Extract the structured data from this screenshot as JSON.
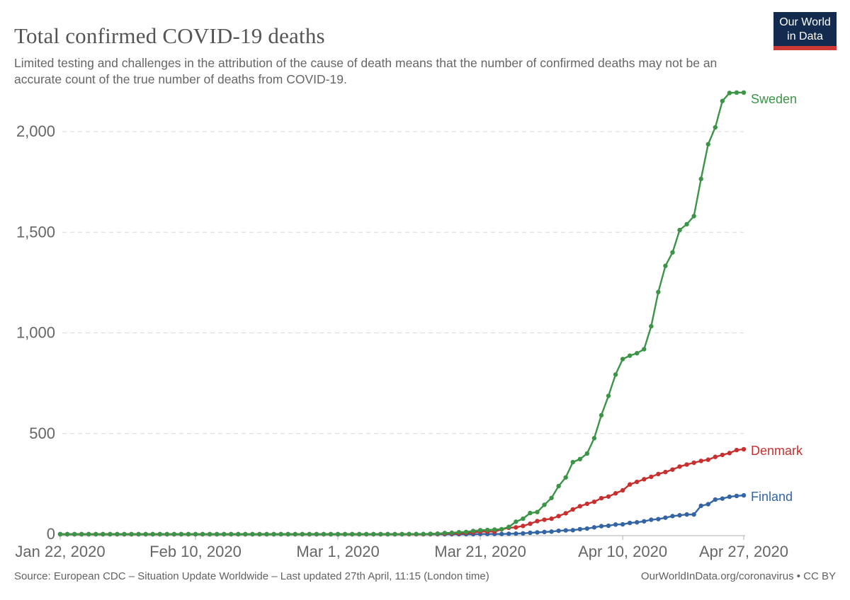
{
  "header": {
    "title": "Total confirmed COVID-19 deaths",
    "subtitle": "Limited testing and challenges in the attribution of the cause of death means that the number of confirmed deaths may not be an accurate count of the true number of deaths from COVID-19."
  },
  "logo": {
    "line1": "Our World",
    "line2": "in Data",
    "bg_color": "#122B4E",
    "stripe_color": "#CF3A34"
  },
  "footer": {
    "source": "Source: European CDC – Situation Update Worldwide – Last updated 27th April, 11:15 (London time)",
    "link": "OurWorldInData.org/coronavirus • CC BY"
  },
  "chart_data": {
    "type": "line",
    "title": "Total confirmed COVID-19 deaths",
    "xlabel": "",
    "ylabel": "",
    "grid": "horizontal-dashed",
    "legend_position": "end-of-line-labels",
    "start_date": "Jan 22, 2020",
    "end_date": "Apr 27, 2020",
    "num_days": 97,
    "x_ticks": [
      {
        "label": "Jan 22, 2020",
        "day_index": 0
      },
      {
        "label": "Feb 10, 2020",
        "day_index": 19
      },
      {
        "label": "Mar 1, 2020",
        "day_index": 39
      },
      {
        "label": "Mar 21, 2020",
        "day_index": 59
      },
      {
        "label": "Apr 10, 2020",
        "day_index": 79
      },
      {
        "label": "Apr 27, 2020",
        "day_index": 96
      }
    ],
    "y_ticks": [
      {
        "label": "0",
        "value": 0
      },
      {
        "label": "500",
        "value": 500
      },
      {
        "label": "1,000",
        "value": 1000
      },
      {
        "label": "1,500",
        "value": 1500
      },
      {
        "label": "2,000",
        "value": 2000
      }
    ],
    "ylim": [
      0,
      2250
    ],
    "colors": {
      "grid": "#d9d9d9",
      "axis": "#b0b0b0",
      "tick_text": "#666666"
    },
    "series": [
      {
        "name": "Sweden",
        "color": "#3C9447",
        "final_value": 2194,
        "values": [
          0,
          0,
          0,
          0,
          0,
          0,
          0,
          0,
          0,
          0,
          0,
          0,
          0,
          0,
          0,
          0,
          0,
          0,
          0,
          0,
          0,
          0,
          0,
          0,
          0,
          0,
          0,
          0,
          0,
          0,
          0,
          0,
          0,
          0,
          0,
          0,
          0,
          0,
          0,
          0,
          0,
          0,
          0,
          0,
          0,
          0,
          0,
          0,
          0,
          1,
          1,
          1,
          2,
          3,
          6,
          7,
          10,
          11,
          16,
          20,
          21,
          23,
          25,
          36,
          62,
          77,
          105,
          110,
          146,
          180,
          239,
          282,
          358,
          373,
          401,
          477,
          591,
          687,
          793,
          870,
          887,
          899,
          919,
          1033,
          1203,
          1333,
          1400,
          1511,
          1540,
          1580,
          1765,
          1937,
          2021,
          2152,
          2192,
          2194,
          2194
        ]
      },
      {
        "name": "Denmark",
        "color": "#C7302E",
        "final_value": 422,
        "values": [
          0,
          0,
          0,
          0,
          0,
          0,
          0,
          0,
          0,
          0,
          0,
          0,
          0,
          0,
          0,
          0,
          0,
          0,
          0,
          0,
          0,
          0,
          0,
          0,
          0,
          0,
          0,
          0,
          0,
          0,
          0,
          0,
          0,
          0,
          0,
          0,
          0,
          0,
          0,
          0,
          0,
          0,
          0,
          0,
          0,
          0,
          0,
          0,
          0,
          0,
          0,
          0,
          1,
          2,
          3,
          4,
          4,
          6,
          9,
          13,
          13,
          13,
          24,
          32,
          34,
          41,
          52,
          65,
          72,
          77,
          90,
          104,
          123,
          139,
          151,
          161,
          179,
          187,
          203,
          218,
          247,
          260,
          273,
          285,
          299,
          309,
          321,
          336,
          346,
          355,
          364,
          370,
          384,
          394,
          403,
          418,
          422
        ]
      },
      {
        "name": "Finland",
        "color": "#3365A5",
        "final_value": 193,
        "values": [
          0,
          0,
          0,
          0,
          0,
          0,
          0,
          0,
          0,
          0,
          0,
          0,
          0,
          0,
          0,
          0,
          0,
          0,
          0,
          0,
          0,
          0,
          0,
          0,
          0,
          0,
          0,
          0,
          0,
          0,
          0,
          0,
          0,
          0,
          0,
          0,
          0,
          0,
          0,
          0,
          0,
          0,
          0,
          0,
          0,
          0,
          0,
          0,
          0,
          0,
          0,
          0,
          0,
          0,
          0,
          0,
          0,
          0,
          0,
          1,
          1,
          1,
          1,
          2,
          3,
          4,
          7,
          9,
          11,
          13,
          17,
          19,
          20,
          25,
          28,
          34,
          40,
          42,
          48,
          49,
          56,
          59,
          64,
          72,
          75,
          82,
          90,
          94,
          98,
          98,
          141,
          149,
          172,
          177,
          186,
          190,
          193
        ]
      }
    ]
  }
}
